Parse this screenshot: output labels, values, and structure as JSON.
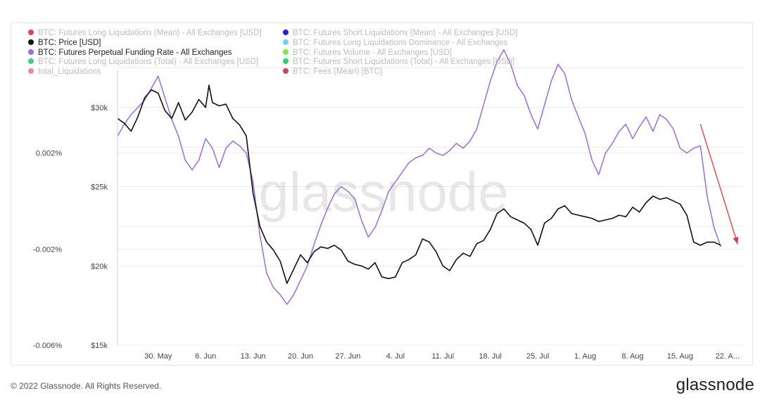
{
  "legend": [
    {
      "label": "BTC: Futures Long Liquidations (Mean) - All Exchanges [USD]",
      "color": "#e8424e",
      "active": false
    },
    {
      "label": "BTC: Futures Short Liquidations (Mean) - All Exchanges [USD]",
      "color": "#2621d9",
      "active": false
    },
    {
      "label": "BTC: Price [USD]",
      "color": "#111111",
      "active": true
    },
    {
      "label": "BTC: Futures Long Liquidations Dominance - All Exchanges",
      "color": "#6ad4f0",
      "active": false
    },
    {
      "label": "BTC: Futures Perpetual Funding Rate - All Exchanges",
      "color": "#9c6ae3",
      "active": true
    },
    {
      "label": "BTC: Futures Volume - All Exchanges [USD]",
      "color": "#86e34a",
      "active": false
    },
    {
      "label": "BTC: Futures Long Liquidations (Total) - All Exchanges [USD]",
      "color": "#3fcf8e",
      "active": false
    },
    {
      "label": "BTC: Futures Short Liquidations (Total) - All Exchanges [USD]",
      "color": "#2bd46a",
      "active": false
    },
    {
      "label": "total_Liquidations",
      "color": "#f08a8a",
      "active": false
    },
    {
      "label": "BTC: Fees (Mean) [BTC]",
      "color": "#c9465e",
      "active": false
    }
  ],
  "footer": {
    "copyright": "© 2022 Glassnode. All Rights Reserved.",
    "logo": "glassnode"
  },
  "watermark": "glassnode",
  "chart_data": {
    "type": "line",
    "title": "",
    "x_ticks": [
      "30. May",
      "6. Jun",
      "13. Jun",
      "20. Jun",
      "27. Jun",
      "4. Jul",
      "11. Jul",
      "18. Jul",
      "25. Jul",
      "1. Aug",
      "8. Aug",
      "15. Aug",
      "22. A..."
    ],
    "x_tick_days": [
      0,
      7,
      14,
      21,
      28,
      35,
      42,
      49,
      56,
      63,
      70,
      77,
      84
    ],
    "x_range_days": [
      -6,
      86.5
    ],
    "y_left_ticks": [
      "0.002%",
      "-0.002%",
      "-0.006%"
    ],
    "y_left_tick_values": [
      0.002,
      -0.002,
      -0.006
    ],
    "y_left_range": [
      -0.006,
      0.0072
    ],
    "y_right_ticks": [
      "$30k",
      "$25k",
      "$20k",
      "$15k"
    ],
    "y_right_tick_values": [
      30000,
      25000,
      20000,
      15000
    ],
    "y_right_range": [
      15000,
      35000
    ],
    "grid": true,
    "series": [
      {
        "name": "BTC: Price [USD]",
        "color": "#111111",
        "axis": "right",
        "points": [
          [
            -6,
            29300
          ],
          [
            -5,
            29000
          ],
          [
            -4,
            28500
          ],
          [
            -3,
            29400
          ],
          [
            -2,
            30600
          ],
          [
            -1,
            31100
          ],
          [
            0,
            30900
          ],
          [
            1,
            29800
          ],
          [
            2,
            29300
          ],
          [
            3,
            30300
          ],
          [
            4,
            29200
          ],
          [
            5,
            29700
          ],
          [
            6,
            30500
          ],
          [
            7,
            30000
          ],
          [
            7.5,
            31400
          ],
          [
            8,
            30300
          ],
          [
            9,
            30100
          ],
          [
            10,
            30200
          ],
          [
            11,
            29300
          ],
          [
            12,
            28900
          ],
          [
            13,
            28200
          ],
          [
            14,
            24600
          ],
          [
            15,
            22500
          ],
          [
            16,
            21500
          ],
          [
            17,
            21000
          ],
          [
            18,
            20300
          ],
          [
            19,
            18900
          ],
          [
            20,
            19800
          ],
          [
            21,
            20700
          ],
          [
            22,
            20200
          ],
          [
            23,
            20900
          ],
          [
            24,
            21200
          ],
          [
            25,
            21100
          ],
          [
            26,
            21300
          ],
          [
            27,
            21000
          ],
          [
            28,
            20300
          ],
          [
            29,
            20100
          ],
          [
            30,
            20000
          ],
          [
            31,
            19800
          ],
          [
            32,
            20200
          ],
          [
            33,
            19300
          ],
          [
            34,
            19200
          ],
          [
            35,
            19300
          ],
          [
            36,
            20200
          ],
          [
            37,
            20400
          ],
          [
            38,
            20700
          ],
          [
            39,
            21700
          ],
          [
            40,
            21500
          ],
          [
            41,
            20900
          ],
          [
            42,
            20000
          ],
          [
            43,
            19700
          ],
          [
            44,
            20400
          ],
          [
            45,
            20800
          ],
          [
            46,
            20600
          ],
          [
            47,
            21400
          ],
          [
            48,
            21600
          ],
          [
            49,
            22300
          ],
          [
            50,
            23300
          ],
          [
            51,
            23600
          ],
          [
            52,
            23100
          ],
          [
            53,
            22900
          ],
          [
            54,
            22700
          ],
          [
            55,
            22300
          ],
          [
            56,
            21300
          ],
          [
            57,
            22700
          ],
          [
            58,
            23000
          ],
          [
            59,
            23600
          ],
          [
            60,
            23800
          ],
          [
            61,
            23300
          ],
          [
            62,
            23200
          ],
          [
            63,
            23100
          ],
          [
            64,
            23000
          ],
          [
            65,
            22800
          ],
          [
            66,
            22900
          ],
          [
            67,
            23000
          ],
          [
            68,
            23200
          ],
          [
            69,
            23100
          ],
          [
            70,
            23700
          ],
          [
            71,
            23400
          ],
          [
            72,
            24000
          ],
          [
            73,
            24400
          ],
          [
            74,
            24200
          ],
          [
            75,
            24300
          ],
          [
            76,
            24100
          ],
          [
            77,
            23900
          ],
          [
            78,
            23200
          ],
          [
            79,
            21500
          ],
          [
            80,
            21300
          ],
          [
            81,
            21500
          ],
          [
            82,
            21500
          ],
          [
            83,
            21300
          ]
        ]
      },
      {
        "name": "BTC: Futures Perpetual Funding Rate - All Exchanges",
        "color": "#9c6ae3",
        "axis": "left",
        "points": [
          [
            -6,
            0.0027
          ],
          [
            -5,
            0.0032
          ],
          [
            -4,
            0.0036
          ],
          [
            -3,
            0.0039
          ],
          [
            -2,
            0.0042
          ],
          [
            -1,
            0.0047
          ],
          [
            0,
            0.0052
          ],
          [
            1,
            0.0043
          ],
          [
            2,
            0.0034
          ],
          [
            3,
            0.0027
          ],
          [
            4,
            0.0017
          ],
          [
            5,
            0.0013
          ],
          [
            6,
            0.0017
          ],
          [
            7,
            0.0026
          ],
          [
            8,
            0.0022
          ],
          [
            9,
            0.0014
          ],
          [
            10,
            0.0022
          ],
          [
            11,
            0.0025
          ],
          [
            12,
            0.0023
          ],
          [
            13,
            0.002
          ],
          [
            14,
            0.0008
          ],
          [
            15,
            -0.0014
          ],
          [
            16,
            -0.003
          ],
          [
            17,
            -0.0036
          ],
          [
            18,
            -0.0039
          ],
          [
            19,
            -0.0043
          ],
          [
            20,
            -0.0039
          ],
          [
            21,
            -0.0033
          ],
          [
            22,
            -0.0027
          ],
          [
            23,
            -0.0018
          ],
          [
            24,
            -0.001
          ],
          [
            25,
            -0.0003
          ],
          [
            26,
            0.0003
          ],
          [
            27,
            0.0006
          ],
          [
            28,
            0.0004
          ],
          [
            29,
            0.0001
          ],
          [
            30,
            -0.0008
          ],
          [
            31,
            -0.0015
          ],
          [
            32,
            -0.0011
          ],
          [
            33,
            -0.0004
          ],
          [
            34,
            0.0004
          ],
          [
            35,
            0.0008
          ],
          [
            36,
            0.0012
          ],
          [
            37,
            0.0016
          ],
          [
            38,
            0.0018
          ],
          [
            39,
            0.0019
          ],
          [
            40,
            0.0022
          ],
          [
            41,
            0.002
          ],
          [
            42,
            0.0019
          ],
          [
            43,
            0.0021
          ],
          [
            44,
            0.0024
          ],
          [
            45,
            0.0022
          ],
          [
            46,
            0.0025
          ],
          [
            47,
            0.003
          ],
          [
            48,
            0.004
          ],
          [
            49,
            0.005
          ],
          [
            50,
            0.0058
          ],
          [
            51,
            0.0063
          ],
          [
            52,
            0.0057
          ],
          [
            53,
            0.0048
          ],
          [
            54,
            0.0044
          ],
          [
            55,
            0.0036
          ],
          [
            56,
            0.003
          ],
          [
            57,
            0.004
          ],
          [
            58,
            0.005
          ],
          [
            59,
            0.0057
          ],
          [
            60,
            0.0053
          ],
          [
            61,
            0.0042
          ],
          [
            62,
            0.0035
          ],
          [
            63,
            0.0028
          ],
          [
            64,
            0.0017
          ],
          [
            65,
            0.0011
          ],
          [
            66,
            0.002
          ],
          [
            67,
            0.0024
          ],
          [
            68,
            0.0029
          ],
          [
            69,
            0.0032
          ],
          [
            70,
            0.0026
          ],
          [
            71,
            0.0031
          ],
          [
            72,
            0.0035
          ],
          [
            73,
            0.0029
          ],
          [
            74,
            0.0036
          ],
          [
            75,
            0.0034
          ],
          [
            76,
            0.003
          ],
          [
            77,
            0.0022
          ],
          [
            78,
            0.002
          ],
          [
            79,
            0.0022
          ],
          [
            80,
            0.0023
          ],
          [
            81,
            0.0002
          ],
          [
            82,
            -0.0011
          ],
          [
            83,
            -0.0019
          ]
        ]
      }
    ],
    "annotations": [
      {
        "type": "arrow",
        "color": "#e53935",
        "from": [
          80,
          0.0032
        ],
        "to": [
          85.5,
          -0.0018
        ]
      }
    ]
  }
}
